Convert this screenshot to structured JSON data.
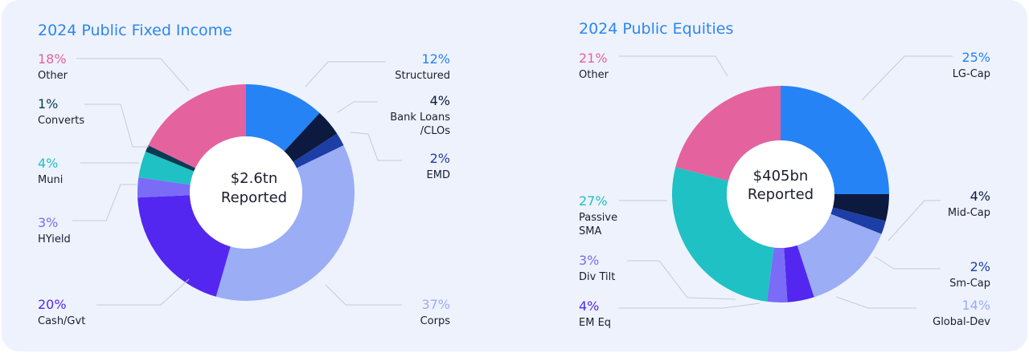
{
  "charts": [
    {
      "title": "2024 Public Fixed Income",
      "center_line1": "$2.6tn",
      "center_line2": "Reported"
    },
    {
      "title": "2024 Public Equities",
      "center_line1": "$405bn",
      "center_line2": "Reported"
    }
  ],
  "colors": {
    "title": "#2d86ee",
    "text": "#1b1e2e",
    "leader": "#c5cad6"
  },
  "chart_data": [
    {
      "type": "pie",
      "title": "2024 Public Fixed Income",
      "center_text": "$2.6tn Reported",
      "slices": [
        {
          "label": "Structured",
          "value": 12,
          "color": "#2683f6"
        },
        {
          "label": "Bank Loans /CLOs",
          "label_lines": [
            "Bank Loans",
            "/CLOs"
          ],
          "value": 4,
          "color": "#0d1a3f"
        },
        {
          "label": "EMD",
          "value": 2,
          "color": "#1c3ea6"
        },
        {
          "label": "Corps",
          "value": 37,
          "color": "#9badf4"
        },
        {
          "label": "Cash/Gvt",
          "value": 20,
          "color": "#5327f0"
        },
        {
          "label": "HYield",
          "value": 3,
          "color": "#7a6cf6"
        },
        {
          "label": "Muni",
          "value": 4,
          "color": "#1fc1c4"
        },
        {
          "label": "Converts",
          "value": 1,
          "color": "#0b3b52"
        },
        {
          "label": "Other",
          "value": 18,
          "color": "#e4629e"
        }
      ]
    },
    {
      "type": "pie",
      "title": "2024 Public Equities",
      "center_text": "$405bn Reported",
      "slices": [
        {
          "label": "LG-Cap",
          "value": 25,
          "color": "#2683f6"
        },
        {
          "label": "Mid-Cap",
          "value": 4,
          "color": "#0d1a3f"
        },
        {
          "label": "Sm-Cap",
          "value": 2,
          "color": "#1c3ea6"
        },
        {
          "label": "Global-Dev",
          "value": 14,
          "color": "#9badf4"
        },
        {
          "label": "EM Eq",
          "value": 4,
          "color": "#5327f0"
        },
        {
          "label": "Div Tilt",
          "value": 3,
          "color": "#7a6cf6"
        },
        {
          "label": "Passive SMA",
          "label_lines": [
            "Passive",
            "SMA"
          ],
          "value": 27,
          "color": "#1fc1c4"
        },
        {
          "label": "Other",
          "value": 21,
          "color": "#e4629e"
        }
      ]
    }
  ]
}
